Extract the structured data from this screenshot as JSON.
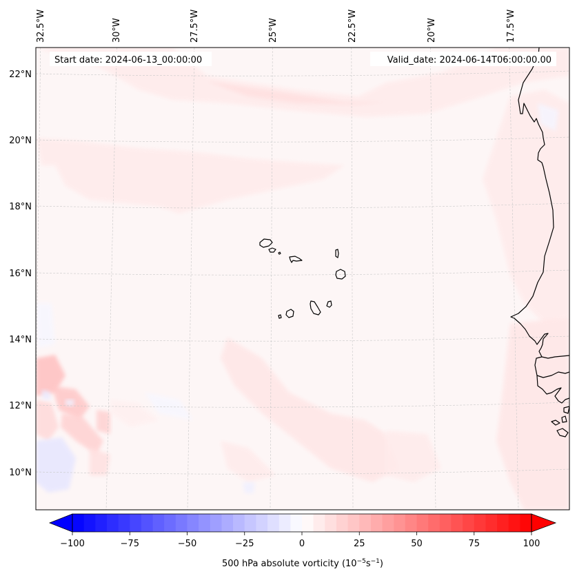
{
  "chart_data": {
    "type": "heatmap",
    "title": "",
    "map": {
      "projection": "Lambert conformal (curved graticule)",
      "lon_ticks": [
        "32.5°W",
        "30°W",
        "27.5°W",
        "25°W",
        "22.5°W",
        "20°W",
        "17.5°W"
      ],
      "lon_values": [
        -32.5,
        -30,
        -27.5,
        -25,
        -22.5,
        -20,
        -17.5
      ],
      "lat_ticks": [
        "22°N",
        "20°N",
        "18°N",
        "16°N",
        "14°N",
        "12°N",
        "10°N"
      ],
      "lat_values": [
        22,
        20,
        18,
        16,
        14,
        12,
        10
      ],
      "lon_range": [
        -33,
        -16
      ],
      "lat_range": [
        8.8,
        22.8
      ],
      "gridlines": true,
      "coastlines": true,
      "features": [
        "West African coast (Mauritania, Senegal, Gambia, Guinea-Bissau)",
        "Cape Verde islands"
      ]
    },
    "annotations": {
      "start_date": "Start date: 2024-06-13_00:00:00",
      "valid_date": "Valid_date: 2024-06-14T06:00:00.00"
    },
    "colorbar": {
      "label_main": "500 hPa absolute vorticity (10",
      "label_exp1": "−5",
      "label_mid": "s",
      "label_exp2": "−1",
      "label_end": ")",
      "vmin": -100,
      "vmax": 100,
      "step": 5,
      "extend": "both",
      "colormap": "bwr",
      "ticks": [
        -100,
        -75,
        -50,
        -25,
        0,
        25,
        50,
        75,
        100
      ],
      "tick_labels": [
        "−100",
        "−75",
        "−50",
        "−25",
        "0",
        "25",
        "50",
        "75",
        "100"
      ],
      "placement": "bottom"
    },
    "field_summary": {
      "dominant_range": [
        0,
        10
      ],
      "positive_bands": [
        {
          "name": "northern band near 21-22°N",
          "value": 10
        },
        {
          "name": "band near 19°N",
          "value": 10
        },
        {
          "name": "coastal strip off Africa",
          "value": 10
        },
        {
          "name": "cluster SW near 11-13°N, 32°W",
          "value": 25
        },
        {
          "name": "band 11-12°N, 24-20°W",
          "value": 15
        }
      ],
      "negative_patches": [
        {
          "name": "SW corner near 10°N, 32°W",
          "value": -10
        },
        {
          "name": "scattered near 12°N",
          "value": -5
        }
      ]
    }
  },
  "colors": {
    "background": "#fdf6f6",
    "pos_light": "#ffe6e6",
    "pos_mid": "#ffd2d2",
    "pos_strong": "#ffbcbc",
    "neg_light": "#f3f4ff",
    "neg_mid": "#e2e3ff",
    "coast": "#000000",
    "grid": "#c8c8c8"
  }
}
